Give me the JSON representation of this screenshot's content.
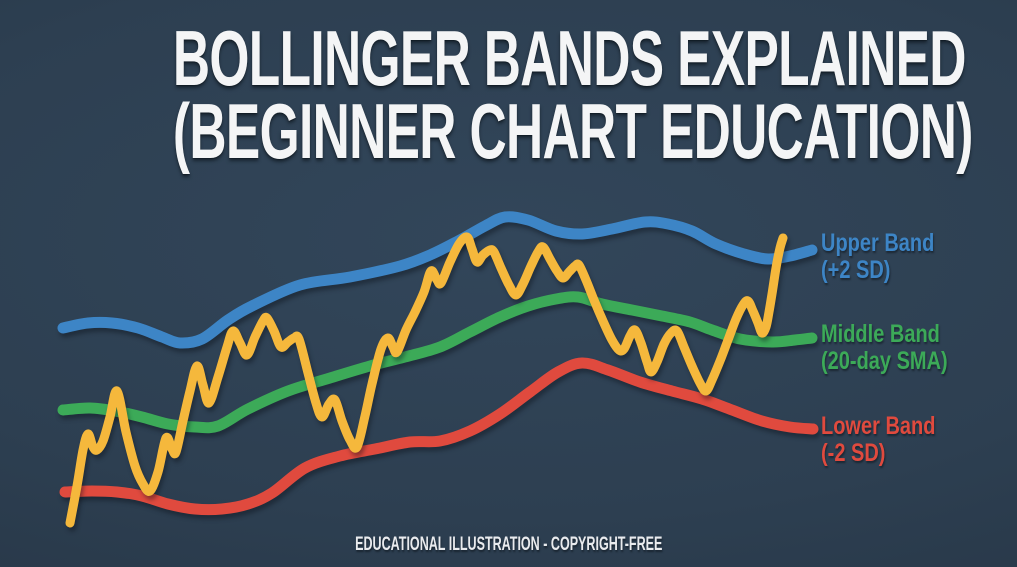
{
  "page": {
    "title_line1": "BOLLINGER BANDS EXPLAINED",
    "title_line2": "(BEGINNER CHART EDUCATION)",
    "footer": "EDUCATIONAL ILLUSTRATION - COPYRIGHT-FREE",
    "background_color": "#2d3f51"
  },
  "legend": {
    "items": [
      {
        "id": "upper-band",
        "line1": "Upper Band",
        "line2": "(+2 SD)",
        "color": "#3d85c6"
      },
      {
        "id": "middle-band",
        "line1": "Middle Band",
        "line2": "(20-day SMA)",
        "color": "#3caa58"
      },
      {
        "id": "lower-band",
        "line1": "Lower Band",
        "line2": "(-2 SD)",
        "color": "#e04a3e"
      }
    ]
  },
  "chart_data": {
    "type": "line",
    "title": "Bollinger Bands illustration",
    "xlabel": "",
    "ylabel": "",
    "axes_shown": false,
    "grid": false,
    "legend_position": "right",
    "note": "Illustrative chart with no axis ticks; point coordinates are screen pixels (y increases downward).",
    "series": [
      {
        "id": "upper-band",
        "name": "Upper Band (+2 SD)",
        "color": "#3d85c6",
        "width": 11,
        "points": [
          [
            63,
            328
          ],
          [
            88,
            323
          ],
          [
            112,
            323
          ],
          [
            138,
            328
          ],
          [
            162,
            337
          ],
          [
            180,
            343
          ],
          [
            202,
            339
          ],
          [
            228,
            320
          ],
          [
            252,
            306
          ],
          [
            300,
            285
          ],
          [
            350,
            277
          ],
          [
            400,
            266
          ],
          [
            430,
            255
          ],
          [
            460,
            240
          ],
          [
            485,
            226
          ],
          [
            505,
            217
          ],
          [
            528,
            220
          ],
          [
            556,
            231
          ],
          [
            582,
            234
          ],
          [
            612,
            229
          ],
          [
            645,
            222
          ],
          [
            668,
            224
          ],
          [
            692,
            231
          ],
          [
            716,
            244
          ],
          [
            744,
            254
          ],
          [
            768,
            259
          ],
          [
            790,
            256
          ],
          [
            812,
            250
          ]
        ]
      },
      {
        "id": "middle-band",
        "name": "Middle Band (20-day SMA)",
        "color": "#3caa58",
        "width": 11,
        "points": [
          [
            63,
            410
          ],
          [
            90,
            408
          ],
          [
            115,
            411
          ],
          [
            142,
            417
          ],
          [
            168,
            424
          ],
          [
            195,
            427
          ],
          [
            218,
            426
          ],
          [
            248,
            409
          ],
          [
            288,
            391
          ],
          [
            330,
            378
          ],
          [
            370,
            366
          ],
          [
            405,
            357
          ],
          [
            440,
            347
          ],
          [
            470,
            332
          ],
          [
            500,
            317
          ],
          [
            528,
            306
          ],
          [
            556,
            299
          ],
          [
            578,
            297
          ],
          [
            602,
            304
          ],
          [
            632,
            310
          ],
          [
            662,
            316
          ],
          [
            690,
            322
          ],
          [
            712,
            330
          ],
          [
            740,
            339
          ],
          [
            772,
            342
          ],
          [
            795,
            340
          ],
          [
            812,
            338
          ]
        ]
      },
      {
        "id": "lower-band",
        "name": "Lower Band (-2 SD)",
        "color": "#e04a3e",
        "width": 11,
        "points": [
          [
            65,
            492
          ],
          [
            92,
            491
          ],
          [
            117,
            492
          ],
          [
            142,
            496
          ],
          [
            168,
            504
          ],
          [
            195,
            509
          ],
          [
            222,
            509
          ],
          [
            248,
            504
          ],
          [
            272,
            493
          ],
          [
            305,
            468
          ],
          [
            340,
            456
          ],
          [
            375,
            449
          ],
          [
            410,
            442
          ],
          [
            440,
            441
          ],
          [
            470,
            431
          ],
          [
            500,
            414
          ],
          [
            530,
            392
          ],
          [
            558,
            372
          ],
          [
            582,
            363
          ],
          [
            608,
            370
          ],
          [
            640,
            382
          ],
          [
            672,
            391
          ],
          [
            702,
            399
          ],
          [
            732,
            410
          ],
          [
            762,
            421
          ],
          [
            790,
            427
          ],
          [
            813,
            429
          ]
        ]
      },
      {
        "id": "price-line",
        "name": "Price (yellow line, unlabeled)",
        "color": "#f5b83c",
        "width": 9,
        "points": [
          [
            70,
            523
          ],
          [
            77,
            486
          ],
          [
            83,
            450
          ],
          [
            88,
            434
          ],
          [
            93,
            447
          ],
          [
            97,
            450
          ],
          [
            103,
            441
          ],
          [
            110,
            417
          ],
          [
            117,
            391
          ],
          [
            126,
            432
          ],
          [
            135,
            466
          ],
          [
            143,
            484
          ],
          [
            150,
            491
          ],
          [
            158,
            472
          ],
          [
            166,
            438
          ],
          [
            172,
            449
          ],
          [
            176,
            452
          ],
          [
            183,
            421
          ],
          [
            190,
            391
          ],
          [
            197,
            366
          ],
          [
            203,
            385
          ],
          [
            209,
            403
          ],
          [
            218,
            377
          ],
          [
            227,
            347
          ],
          [
            233,
            331
          ],
          [
            240,
            343
          ],
          [
            247,
            355
          ],
          [
            255,
            337
          ],
          [
            263,
            321
          ],
          [
            267,
            318
          ],
          [
            274,
            331
          ],
          [
            281,
            347
          ],
          [
            288,
            342
          ],
          [
            294,
            338
          ],
          [
            299,
            339
          ],
          [
            308,
            373
          ],
          [
            316,
            403
          ],
          [
            322,
            417
          ],
          [
            329,
            404
          ],
          [
            335,
            400
          ],
          [
            342,
            421
          ],
          [
            350,
            440
          ],
          [
            357,
            447
          ],
          [
            365,
            416
          ],
          [
            372,
            384
          ],
          [
            381,
            349
          ],
          [
            388,
            338
          ],
          [
            393,
            347
          ],
          [
            397,
            352
          ],
          [
            406,
            330
          ],
          [
            415,
            312
          ],
          [
            424,
            292
          ],
          [
            431,
            271
          ],
          [
            437,
            280
          ],
          [
            441,
            283
          ],
          [
            450,
            262
          ],
          [
            459,
            244
          ],
          [
            467,
            237
          ],
          [
            472,
            249
          ],
          [
            477,
            262
          ],
          [
            483,
            255
          ],
          [
            490,
            250
          ],
          [
            494,
            252
          ],
          [
            501,
            268
          ],
          [
            509,
            285
          ],
          [
            516,
            295
          ],
          [
            523,
            284
          ],
          [
            531,
            266
          ],
          [
            538,
            252
          ],
          [
            543,
            247
          ],
          [
            550,
            259
          ],
          [
            557,
            271
          ],
          [
            563,
            278
          ],
          [
            569,
            272
          ],
          [
            575,
            266
          ],
          [
            579,
            265
          ],
          [
            586,
            280
          ],
          [
            594,
            300
          ],
          [
            603,
            321
          ],
          [
            612,
            340
          ],
          [
            619,
            350
          ],
          [
            624,
            349
          ],
          [
            630,
            336
          ],
          [
            635,
            330
          ],
          [
            641,
            343
          ],
          [
            647,
            362
          ],
          [
            651,
            372
          ],
          [
            657,
            362
          ],
          [
            664,
            344
          ],
          [
            671,
            333
          ],
          [
            677,
            331
          ],
          [
            684,
            347
          ],
          [
            692,
            366
          ],
          [
            700,
            383
          ],
          [
            706,
            391
          ],
          [
            712,
            380
          ],
          [
            720,
            361
          ],
          [
            728,
            340
          ],
          [
            736,
            319
          ],
          [
            743,
            305
          ],
          [
            748,
            301
          ],
          [
            753,
            311
          ],
          [
            758,
            323
          ],
          [
            762,
            333
          ],
          [
            766,
            327
          ],
          [
            769,
            312
          ],
          [
            772,
            294
          ],
          [
            776,
            268
          ],
          [
            780,
            248
          ],
          [
            783,
            238
          ]
        ]
      }
    ]
  }
}
